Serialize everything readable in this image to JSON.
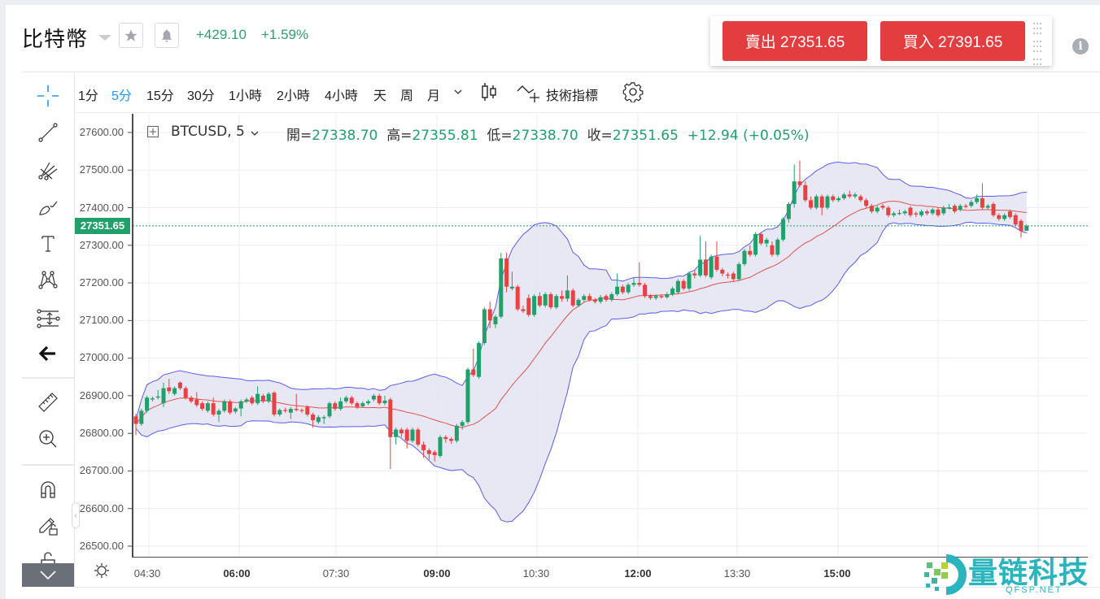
{
  "header": {
    "title": "比特幣",
    "change_abs": "+429.10",
    "change_pct": "+1.59%"
  },
  "trade": {
    "sell_label": "賣出 27351.65",
    "buy_label": "買入 27391.65"
  },
  "timeframes": [
    {
      "label": "1分",
      "active": false
    },
    {
      "label": "5分",
      "active": true
    },
    {
      "label": "15分",
      "active": false
    },
    {
      "label": "30分",
      "active": false
    },
    {
      "label": "1小時",
      "active": false
    },
    {
      "label": "2小時",
      "active": false
    },
    {
      "label": "4小時",
      "active": false
    },
    {
      "label": "天",
      "active": false
    },
    {
      "label": "周",
      "active": false
    },
    {
      "label": "月",
      "active": false
    }
  ],
  "toolbar": {
    "indicators_label": "技術指標"
  },
  "legend": {
    "symbol": "BTCUSD, 5",
    "open_label": "開=",
    "open": "27338.70",
    "high_label": "高=",
    "high": "27355.81",
    "low_label": "低=",
    "low": "27338.70",
    "close_label": "收=",
    "close": "27351.65",
    "change": "+12.94 (+0.05%)"
  },
  "price_tag": "27351.65",
  "watermark": {
    "name": "量链科技",
    "sub": "QFSP.NET"
  },
  "colors": {
    "up": "#22a06b",
    "down": "#e84142",
    "band": "#5a5cf0",
    "band_fill": "#e4e4f2",
    "basis": "#e3504f",
    "active_tf": "#2196f3"
  },
  "chart_data": {
    "type": "candlestick",
    "symbol": "BTCUSD",
    "interval": "5",
    "indicator": "Bollinger Bands (20, 2)",
    "yticks": [
      "27600.00",
      "27500.00",
      "27400.00",
      "27300.00",
      "27200.00",
      "27100.00",
      "27000.00",
      "26900.00",
      "26800.00",
      "26700.00",
      "26600.00",
      "26500.00"
    ],
    "ylim": [
      26500,
      27600
    ],
    "xticks": [
      "04:30",
      "06:00",
      "07:30",
      "09:00",
      "10:30",
      "12:00",
      "13:30",
      "15:00"
    ],
    "last_price": 27351.65,
    "candles": [
      [
        26845,
        26852,
        26795,
        26825
      ],
      [
        26825,
        26865,
        26820,
        26860
      ],
      [
        26860,
        26900,
        26855,
        26895
      ],
      [
        26890,
        26898,
        26885,
        26893
      ],
      [
        26895,
        26915,
        26890,
        26898
      ],
      [
        26880,
        26935,
        26870,
        26920
      ],
      [
        26922,
        26945,
        26905,
        26912
      ],
      [
        26905,
        26925,
        26900,
        26920
      ],
      [
        26935,
        26938,
        26915,
        26920
      ],
      [
        26920,
        26925,
        26890,
        26895
      ],
      [
        26895,
        26900,
        26880,
        26885
      ],
      [
        26890,
        26910,
        26870,
        26875
      ],
      [
        26880,
        26885,
        26860,
        26865
      ],
      [
        26860,
        26885,
        26855,
        26880
      ],
      [
        26880,
        26895,
        26845,
        26850
      ],
      [
        26850,
        26865,
        26830,
        26860
      ],
      [
        26860,
        26890,
        26855,
        26885
      ],
      [
        26885,
        26890,
        26850,
        26855
      ],
      [
        26858,
        26870,
        26852,
        26866
      ],
      [
        26866,
        26890,
        26845,
        26885
      ],
      [
        26885,
        26895,
        26880,
        26890
      ],
      [
        26895,
        26900,
        26875,
        26880
      ],
      [
        26880,
        26925,
        26875,
        26905
      ],
      [
        26900,
        26905,
        26880,
        26885
      ],
      [
        26885,
        26910,
        26880,
        26905
      ],
      [
        26908,
        26912,
        26845,
        26850
      ],
      [
        26850,
        26866,
        26845,
        26862
      ],
      [
        26862,
        26868,
        26855,
        26860
      ],
      [
        26855,
        26870,
        26838,
        26865
      ],
      [
        26865,
        26905,
        26858,
        26862
      ],
      [
        26862,
        26866,
        26855,
        26860
      ],
      [
        26870,
        26875,
        26845,
        26850
      ],
      [
        26850,
        26855,
        26815,
        26835
      ],
      [
        26830,
        26848,
        26825,
        26843
      ],
      [
        26840,
        26848,
        26825,
        26843
      ],
      [
        26845,
        26885,
        26840,
        26880
      ],
      [
        26880,
        26885,
        26860,
        26865
      ],
      [
        26865,
        26895,
        26860,
        26885
      ],
      [
        26885,
        26900,
        26880,
        26895
      ],
      [
        26895,
        26900,
        26875,
        26880
      ],
      [
        26880,
        26885,
        26865,
        26870
      ],
      [
        26872,
        26885,
        26868,
        26880
      ],
      [
        26880,
        26890,
        26875,
        26885
      ],
      [
        26890,
        26905,
        26885,
        26900
      ],
      [
        26900,
        26905,
        26875,
        26880
      ],
      [
        26880,
        26900,
        26875,
        26887
      ],
      [
        26890,
        26895,
        26705,
        26790
      ],
      [
        26790,
        26815,
        26770,
        26810
      ],
      [
        26810,
        26815,
        26790,
        26800
      ],
      [
        26810,
        26815,
        26760,
        26780
      ],
      [
        26780,
        26815,
        26775,
        26810
      ],
      [
        26810,
        26815,
        26765,
        26770
      ],
      [
        26770,
        26778,
        26735,
        26755
      ],
      [
        26755,
        26760,
        26730,
        26745
      ],
      [
        26750,
        26755,
        26725,
        26742
      ],
      [
        26740,
        26795,
        26735,
        26790
      ],
      [
        26790,
        26795,
        26775,
        26785
      ],
      [
        26785,
        26790,
        26772,
        26780
      ],
      [
        26780,
        26825,
        26775,
        26820
      ],
      [
        26820,
        26835,
        26810,
        26830
      ],
      [
        26830,
        26975,
        26825,
        26970
      ],
      [
        26970,
        27025,
        26950,
        26955
      ],
      [
        26950,
        27045,
        26945,
        27040
      ],
      [
        27040,
        27135,
        27035,
        27130
      ],
      [
        27130,
        27150,
        27080,
        27100
      ],
      [
        27090,
        27115,
        27080,
        27110
      ],
      [
        27110,
        27280,
        27105,
        27265
      ],
      [
        27265,
        27280,
        27175,
        27190
      ],
      [
        27185,
        27230,
        27180,
        27190
      ],
      [
        27190,
        27195,
        27125,
        27130
      ],
      [
        27130,
        27140,
        27120,
        27125
      ],
      [
        27160,
        27170,
        27110,
        27115
      ],
      [
        27115,
        27170,
        27110,
        27165
      ],
      [
        27165,
        27175,
        27135,
        27140
      ],
      [
        27140,
        27175,
        27135,
        27170
      ],
      [
        27170,
        27175,
        27130,
        27135
      ],
      [
        27135,
        27170,
        27130,
        27165
      ],
      [
        27165,
        27180,
        27150,
        27158
      ],
      [
        27158,
        27220,
        27150,
        27180
      ],
      [
        27180,
        27185,
        27135,
        27140
      ],
      [
        27140,
        27160,
        27135,
        27155
      ],
      [
        27155,
        27170,
        27150,
        27165
      ],
      [
        27165,
        27172,
        27150,
        27155
      ],
      [
        27155,
        27160,
        27145,
        27150
      ],
      [
        27150,
        27168,
        27145,
        27162
      ],
      [
        27165,
        27170,
        27150,
        27155
      ],
      [
        27155,
        27175,
        27150,
        27170
      ],
      [
        27170,
        27225,
        27165,
        27190
      ],
      [
        27190,
        27195,
        27170,
        27175
      ],
      [
        27175,
        27200,
        27170,
        27195
      ],
      [
        27195,
        27215,
        27190,
        27200
      ],
      [
        27200,
        27255,
        27190,
        27195
      ],
      [
        27195,
        27200,
        27160,
        27165
      ],
      [
        27165,
        27170,
        27155,
        27160
      ],
      [
        27160,
        27170,
        27155,
        27165
      ],
      [
        27165,
        27170,
        27158,
        27162
      ],
      [
        27162,
        27175,
        27158,
        27170
      ],
      [
        27170,
        27190,
        27165,
        27185
      ],
      [
        27175,
        27210,
        27170,
        27205
      ],
      [
        27205,
        27210,
        27180,
        27185
      ],
      [
        27185,
        27230,
        27180,
        27225
      ],
      [
        27225,
        27232,
        27212,
        27220
      ],
      [
        27220,
        27325,
        27215,
        27262
      ],
      [
        27262,
        27310,
        27215,
        27220
      ],
      [
        27215,
        27275,
        27210,
        27270
      ],
      [
        27270,
        27310,
        27230,
        27235
      ],
      [
        27235,
        27240,
        27218,
        27225
      ],
      [
        27222,
        27228,
        27212,
        27220
      ],
      [
        27225,
        27230,
        27205,
        27210
      ],
      [
        27210,
        27255,
        27205,
        27250
      ],
      [
        27250,
        27290,
        27245,
        27285
      ],
      [
        27285,
        27300,
        27270,
        27275
      ],
      [
        27275,
        27335,
        27270,
        27330
      ],
      [
        27330,
        27335,
        27300,
        27305
      ],
      [
        27305,
        27320,
        27295,
        27315
      ],
      [
        27300,
        27310,
        27270,
        27275
      ],
      [
        27275,
        27320,
        27270,
        27315
      ],
      [
        27315,
        27375,
        27310,
        27370
      ],
      [
        27370,
        27415,
        27360,
        27410
      ],
      [
        27410,
        27515,
        27400,
        27470
      ],
      [
        27470,
        27525,
        27455,
        27460
      ],
      [
        27460,
        27470,
        27415,
        27420
      ],
      [
        27420,
        27430,
        27395,
        27400
      ],
      [
        27400,
        27435,
        27395,
        27430
      ],
      [
        27430,
        27435,
        27380,
        27400
      ],
      [
        27400,
        27435,
        27395,
        27430
      ],
      [
        27430,
        27435,
        27415,
        27420
      ],
      [
        27420,
        27430,
        27415,
        27425
      ],
      [
        27425,
        27440,
        27420,
        27435
      ],
      [
        27435,
        27445,
        27425,
        27430
      ],
      [
        27430,
        27440,
        27425,
        27435
      ],
      [
        27430,
        27435,
        27415,
        27420
      ],
      [
        27420,
        27425,
        27400,
        27405
      ],
      [
        27405,
        27410,
        27385,
        27390
      ],
      [
        27390,
        27405,
        27385,
        27400
      ],
      [
        27405,
        27410,
        27395,
        27400
      ],
      [
        27400,
        27405,
        27375,
        27380
      ],
      [
        27380,
        27390,
        27375,
        27385
      ],
      [
        27385,
        27395,
        27380,
        27386
      ],
      [
        27385,
        27395,
        27380,
        27390
      ],
      [
        27400,
        27405,
        27375,
        27380
      ],
      [
        27385,
        27390,
        27375,
        27382
      ],
      [
        27380,
        27395,
        27375,
        27390
      ],
      [
        27390,
        27395,
        27380,
        27385
      ],
      [
        27385,
        27400,
        27380,
        27395
      ],
      [
        27395,
        27400,
        27375,
        27380
      ],
      [
        27385,
        27405,
        27380,
        27400
      ],
      [
        27400,
        27410,
        27395,
        27401
      ],
      [
        27405,
        27410,
        27385,
        27390
      ],
      [
        27395,
        27410,
        27390,
        27405
      ],
      [
        27405,
        27410,
        27398,
        27402
      ],
      [
        27405,
        27420,
        27400,
        27415
      ],
      [
        27415,
        27435,
        27410,
        27425
      ],
      [
        27425,
        27465,
        27395,
        27400
      ],
      [
        27400,
        27410,
        27395,
        27405
      ],
      [
        27410,
        27415,
        27375,
        27380
      ],
      [
        27380,
        27385,
        27365,
        27370
      ],
      [
        27370,
        27385,
        27365,
        27380
      ],
      [
        27390,
        27395,
        27370,
        27375
      ],
      [
        27380,
        27385,
        27350,
        27355
      ],
      [
        27365,
        27370,
        27320,
        27338
      ],
      [
        27338.7,
        27355.81,
        27338.7,
        27351.65
      ]
    ]
  }
}
